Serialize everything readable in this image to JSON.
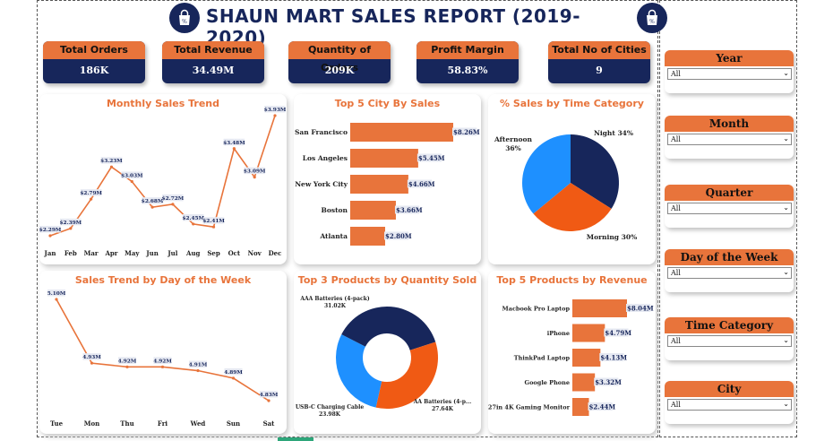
{
  "header": {
    "title": "SHAUN MART SALES REPORT  (2019-2020)"
  },
  "kpis": [
    {
      "label": "Total Orders",
      "value": "186K"
    },
    {
      "label": "Total Revenue",
      "value": "34.49M"
    },
    {
      "label": "Quantity of Orders",
      "value": "209K"
    },
    {
      "label": "Profit Margin",
      "value": "58.83%"
    },
    {
      "label": "Total No of Cities",
      "value": "9"
    }
  ],
  "filters": [
    {
      "label": "Year",
      "value": "All"
    },
    {
      "label": "Month",
      "value": "All"
    },
    {
      "label": "Quarter",
      "value": "All"
    },
    {
      "label": "Day of the Week",
      "value": "All"
    },
    {
      "label": "Time Category",
      "value": "All"
    },
    {
      "label": "City",
      "value": "All"
    }
  ],
  "colors": {
    "orange": "#e8743b",
    "navy": "#17265b",
    "blue": "#1e90ff",
    "deep_orange": "#f05a14"
  },
  "chart_data": [
    {
      "id": "monthly",
      "type": "line",
      "title": "Monthly Sales Trend",
      "categories": [
        "Jan",
        "Feb",
        "Mar",
        "Apr",
        "May",
        "Jun",
        "Jul",
        "Aug",
        "Sep",
        "Oct",
        "Nov",
        "Dec"
      ],
      "values": [
        2.29,
        2.39,
        2.79,
        3.23,
        3.03,
        2.68,
        2.72,
        2.45,
        2.41,
        3.48,
        3.09,
        3.93
      ],
      "labels": [
        "$2.29M",
        "$2.39M",
        "$2.79M",
        "$3.23M",
        "$3.03M",
        "$2.68M",
        "$2.72M",
        "$2.45M",
        "$2.41M",
        "$3.48M",
        "$3.09M",
        "$3.93M"
      ]
    },
    {
      "id": "city",
      "type": "bar",
      "title": "Top 5 City By Sales",
      "categories": [
        "San Francisco",
        "Los Angeles",
        "New York City",
        "Boston",
        "Atlanta"
      ],
      "values": [
        8.26,
        5.45,
        4.66,
        3.66,
        2.8
      ],
      "labels": [
        "$8.26M",
        "$5.45M",
        "$4.66M",
        "$3.66M",
        "$2.80M"
      ]
    },
    {
      "id": "timecat",
      "type": "pie",
      "title": "% Sales by Time Category",
      "slices": [
        {
          "name": "Night",
          "value": 34,
          "label": "Night 34%",
          "color": "#17265b"
        },
        {
          "name": "Morning",
          "value": 30,
          "label": "Morning 30%",
          "color": "#f05a14"
        },
        {
          "name": "Afternoon",
          "value": 36,
          "label": "Afternoon 36%",
          "color": "#1e90ff"
        }
      ]
    },
    {
      "id": "dow",
      "type": "line",
      "title": "Sales Trend by Day of the Week",
      "categories": [
        "Tue",
        "Mon",
        "Thu",
        "Fri",
        "Wed",
        "Sun",
        "Sat"
      ],
      "values": [
        5.1,
        4.93,
        4.92,
        4.92,
        4.91,
        4.89,
        4.83
      ],
      "labels": [
        "5.10M",
        "4.93M",
        "4.92M",
        "4.92M",
        "4.91M",
        "4.89M",
        "4.83M"
      ]
    },
    {
      "id": "qty",
      "type": "pie",
      "title": "Top 3 Products by Quantity Sold",
      "slices": [
        {
          "name": "AAA Batteries (4-pack)",
          "value": 31.02,
          "label": "31.02K",
          "color": "#17265b"
        },
        {
          "name": "AA Batteries (4-p...",
          "value": 27.64,
          "label": "27.64K",
          "color": "#f05a14"
        },
        {
          "name": "USB-C Charging Cable",
          "value": 23.98,
          "label": "23.98K",
          "color": "#1e90ff"
        }
      ]
    },
    {
      "id": "prod",
      "type": "bar",
      "title": "Top 5 Products by Revenue",
      "categories": [
        "Macbook Pro Laptop",
        "iPhone",
        "ThinkPad Laptop",
        "Google Phone",
        "27in 4K Gaming Monitor"
      ],
      "values": [
        8.04,
        4.79,
        4.13,
        3.32,
        2.44
      ],
      "labels": [
        "$8.04M",
        "$4.79M",
        "$4.13M",
        "$3.32M",
        "$2.44M"
      ]
    }
  ]
}
